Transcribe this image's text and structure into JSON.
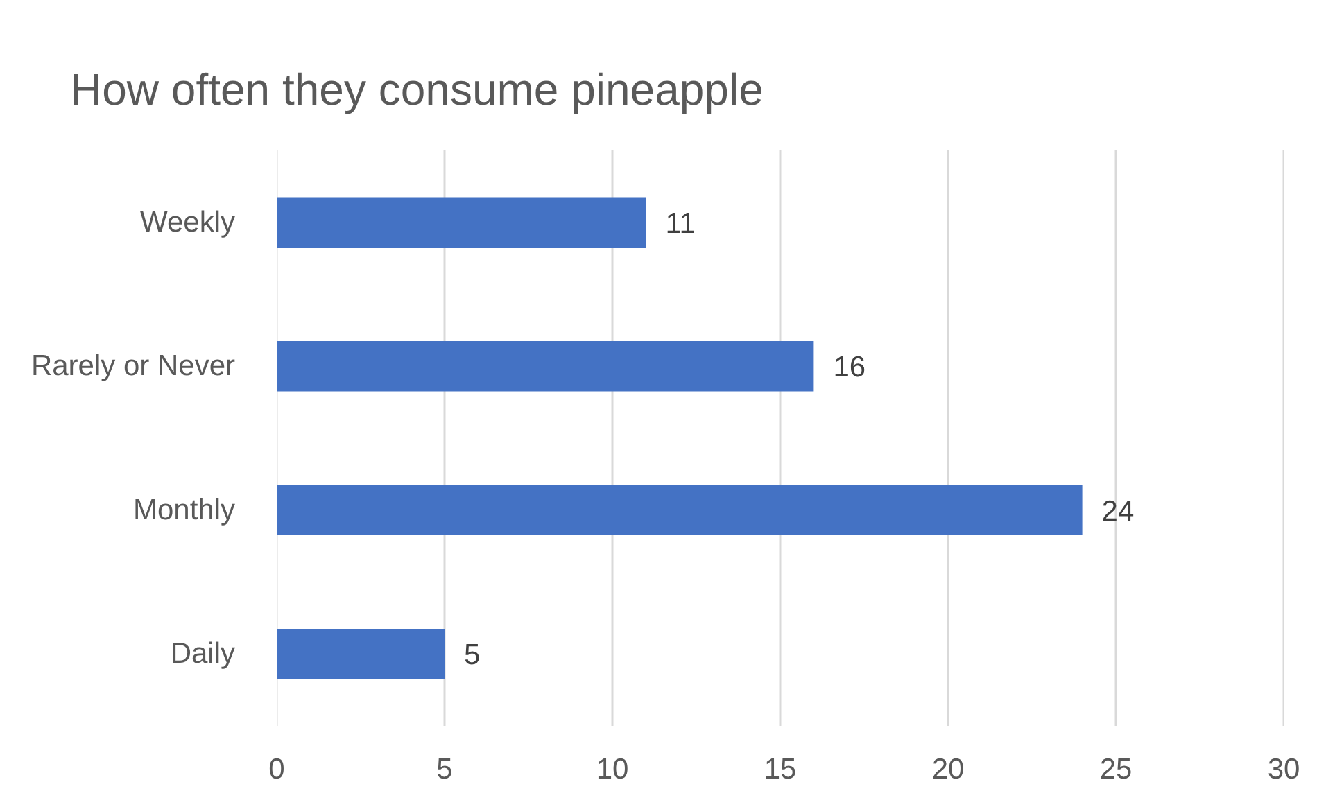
{
  "chart_data": {
    "type": "bar",
    "orientation": "horizontal",
    "title": "How often they consume pineapple",
    "categories": [
      "Weekly",
      "Rarely or Never",
      "Monthly",
      "Daily"
    ],
    "values": [
      11,
      16,
      24,
      5
    ],
    "color": "#4472c4",
    "xlim": [
      0,
      30
    ],
    "xticks": [
      0,
      5,
      10,
      15,
      20,
      25,
      30
    ],
    "grid": "x",
    "data_labels": true
  }
}
